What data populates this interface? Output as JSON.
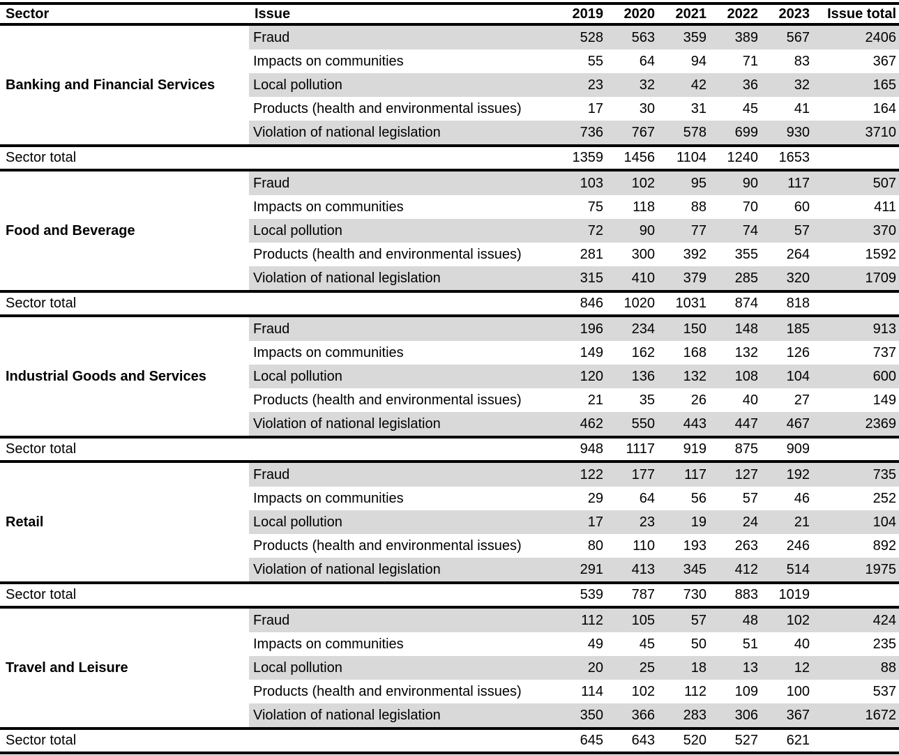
{
  "chart_data": {
    "type": "table",
    "columns": [
      "Sector",
      "Issue",
      "2019",
      "2020",
      "2021",
      "2022",
      "2023",
      "Issue total"
    ],
    "sector_total_label": "Sector total",
    "sectors": [
      {
        "name": "Banking and Financial Services",
        "rows": [
          {
            "issue": "Fraud",
            "values": [
              528,
              563,
              359,
              389,
              567
            ],
            "total": 2406
          },
          {
            "issue": "Impacts on communities",
            "values": [
              55,
              64,
              94,
              71,
              83
            ],
            "total": 367
          },
          {
            "issue": "Local pollution",
            "values": [
              23,
              32,
              42,
              36,
              32
            ],
            "total": 165
          },
          {
            "issue": "Products (health and environmental issues)",
            "values": [
              17,
              30,
              31,
              45,
              41
            ],
            "total": 164
          },
          {
            "issue": "Violation of national legislation",
            "values": [
              736,
              767,
              578,
              699,
              930
            ],
            "total": 3710
          }
        ],
        "totals": [
          1359,
          1456,
          1104,
          1240,
          1653
        ]
      },
      {
        "name": "Food and Beverage",
        "rows": [
          {
            "issue": "Fraud",
            "values": [
              103,
              102,
              95,
              90,
              117
            ],
            "total": 507
          },
          {
            "issue": "Impacts on communities",
            "values": [
              75,
              118,
              88,
              70,
              60
            ],
            "total": 411
          },
          {
            "issue": "Local pollution",
            "values": [
              72,
              90,
              77,
              74,
              57
            ],
            "total": 370
          },
          {
            "issue": "Products (health and environmental issues)",
            "values": [
              281,
              300,
              392,
              355,
              264
            ],
            "total": 1592
          },
          {
            "issue": "Violation of national legislation",
            "values": [
              315,
              410,
              379,
              285,
              320
            ],
            "total": 1709
          }
        ],
        "totals": [
          846,
          1020,
          1031,
          874,
          818
        ]
      },
      {
        "name": "Industrial Goods and Services",
        "rows": [
          {
            "issue": "Fraud",
            "values": [
              196,
              234,
              150,
              148,
              185
            ],
            "total": 913
          },
          {
            "issue": "Impacts on communities",
            "values": [
              149,
              162,
              168,
              132,
              126
            ],
            "total": 737
          },
          {
            "issue": "Local pollution",
            "values": [
              120,
              136,
              132,
              108,
              104
            ],
            "total": 600
          },
          {
            "issue": "Products (health and environmental issues)",
            "values": [
              21,
              35,
              26,
              40,
              27
            ],
            "total": 149
          },
          {
            "issue": "Violation of national legislation",
            "values": [
              462,
              550,
              443,
              447,
              467
            ],
            "total": 2369
          }
        ],
        "totals": [
          948,
          1117,
          919,
          875,
          909
        ]
      },
      {
        "name": "Retail",
        "rows": [
          {
            "issue": "Fraud",
            "values": [
              122,
              177,
              117,
              127,
              192
            ],
            "total": 735
          },
          {
            "issue": "Impacts on communities",
            "values": [
              29,
              64,
              56,
              57,
              46
            ],
            "total": 252
          },
          {
            "issue": "Local pollution",
            "values": [
              17,
              23,
              19,
              24,
              21
            ],
            "total": 104
          },
          {
            "issue": "Products (health and environmental issues)",
            "values": [
              80,
              110,
              193,
              263,
              246
            ],
            "total": 892
          },
          {
            "issue": "Violation of national legislation",
            "values": [
              291,
              413,
              345,
              412,
              514
            ],
            "total": 1975
          }
        ],
        "totals": [
          539,
          787,
          730,
          883,
          1019
        ]
      },
      {
        "name": "Travel and Leisure",
        "rows": [
          {
            "issue": "Fraud",
            "values": [
              112,
              105,
              57,
              48,
              102
            ],
            "total": 424
          },
          {
            "issue": "Impacts on communities",
            "values": [
              49,
              45,
              50,
              51,
              40
            ],
            "total": 235
          },
          {
            "issue": "Local pollution",
            "values": [
              20,
              25,
              18,
              13,
              12
            ],
            "total": 88
          },
          {
            "issue": "Products (health and environmental issues)",
            "values": [
              114,
              102,
              112,
              109,
              100
            ],
            "total": 537
          },
          {
            "issue": "Violation of national legislation",
            "values": [
              350,
              366,
              283,
              306,
              367
            ],
            "total": 1672
          }
        ],
        "totals": [
          645,
          643,
          520,
          527,
          621
        ]
      }
    ]
  },
  "colors": {
    "row_shade": "#d9d9d9",
    "rule": "#000000",
    "text": "#000000",
    "background": "#ffffff"
  }
}
